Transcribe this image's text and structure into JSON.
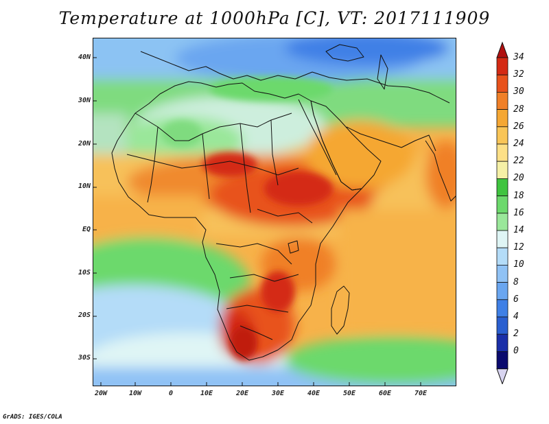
{
  "title": "Temperature at 1000hPa [C], VT: 2017111909",
  "credit": "GrADS: IGES/COLA",
  "lat_labels": [
    "40N",
    "30N",
    "20N",
    "10N",
    "EQ",
    "10S",
    "20S",
    "30S"
  ],
  "lon_labels": [
    "20W",
    "10W",
    "0",
    "10E",
    "20E",
    "30E",
    "40E",
    "50E",
    "60E",
    "70E"
  ],
  "colorbar": {
    "unit": "C",
    "levels": [
      0,
      2,
      4,
      6,
      8,
      10,
      12,
      14,
      16,
      18,
      20,
      22,
      24,
      26,
      28,
      30,
      32,
      34
    ],
    "labels": [
      "34",
      "32",
      "30",
      "28",
      "26",
      "24",
      "22",
      "20",
      "18",
      "16",
      "14",
      "12",
      "10",
      "8",
      "6",
      "4",
      "2",
      "0"
    ],
    "colors": [
      "#0a0a6e",
      "#1a2fa8",
      "#2a5fd0",
      "#3f80e6",
      "#6aa6f0",
      "#90c2f5",
      "#b4dcf8",
      "#dff5f5",
      "#9ae79a",
      "#6cd96c",
      "#3fc43f",
      "#f5f0a6",
      "#fde087",
      "#f9c557",
      "#f5a733",
      "#f08028",
      "#e8521c",
      "#d42a14"
    ],
    "under_color": "#d8d4f0",
    "over_color": "#b01010"
  },
  "map": {
    "projection": "lat-lon",
    "lon_range": [
      "22W",
      "80E"
    ],
    "lat_range": [
      "37S",
      "45N"
    ],
    "field": "temperature at 1000hPa"
  }
}
